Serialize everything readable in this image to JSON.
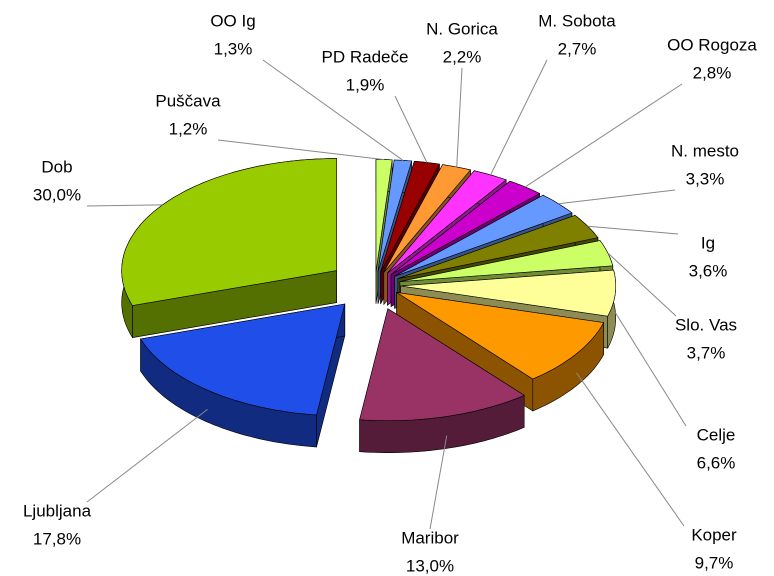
{
  "chart_data": {
    "type": "pie3d",
    "categories": [
      "Puščava",
      "OO Ig",
      "PD Radeče",
      "N. Gorica",
      "M. Sobota",
      "OO Rogoza",
      "N. mesto",
      "Ig",
      "Slo. Vas",
      "Celje",
      "Koper",
      "Maribor",
      "Ljubljana",
      "Dob"
    ],
    "values": [
      1.2,
      1.3,
      1.9,
      2.2,
      2.7,
      2.8,
      3.3,
      3.6,
      3.7,
      6.6,
      9.7,
      13.0,
      17.8,
      30.0
    ],
    "value_labels": [
      "1,2%",
      "1,3%",
      "1,9%",
      "2,2%",
      "2,7%",
      "2,8%",
      "3,3%",
      "3,6%",
      "3,7%",
      "6,6%",
      "9,7%",
      "13,0%",
      "17,8%",
      "30,0%"
    ],
    "colors": [
      "#ccff66",
      "#6699ff",
      "#990000",
      "#ff9933",
      "#ff33ff",
      "#cc00cc",
      "#6699ff",
      "#808000",
      "#ccff66",
      "#ffff99",
      "#ff9900",
      "#993366",
      "#1f4fe8",
      "#99cc00"
    ]
  }
}
